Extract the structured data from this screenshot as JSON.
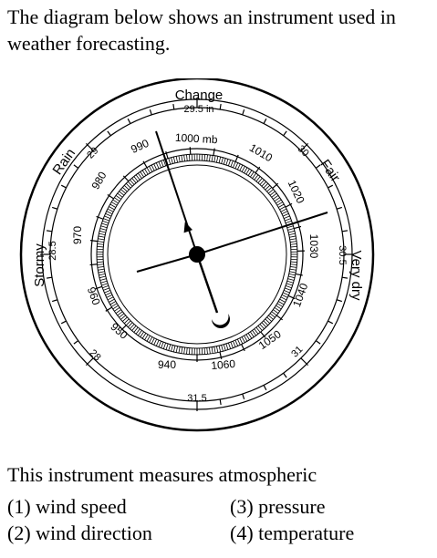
{
  "intro_text": "The diagram below shows an instrument used in weather forecasting.",
  "question_text": "This instrument measures atmospheric",
  "choices": [
    {
      "number": "(1)",
      "text": "wind speed"
    },
    {
      "number": "(2)",
      "text": "wind direction"
    },
    {
      "number": "(3)",
      "text": "pressure"
    },
    {
      "number": "(4)",
      "text": "temperature"
    }
  ],
  "dial": {
    "outer_labels": {
      "change": "Change",
      "fair": "Fair",
      "very_dry": "Very dry",
      "stormy": "Stormy",
      "rain": "Rain"
    },
    "inch_labels": [
      "28",
      "28.5",
      "29",
      "29.5 in",
      "30",
      "30.5",
      "31",
      "31.5"
    ],
    "mb_labels": [
      "940",
      "950",
      "960",
      "970",
      "980",
      "990",
      "1000 mb",
      "1010",
      "1020",
      "1030",
      "1040",
      "1050",
      "1060"
    ]
  }
}
